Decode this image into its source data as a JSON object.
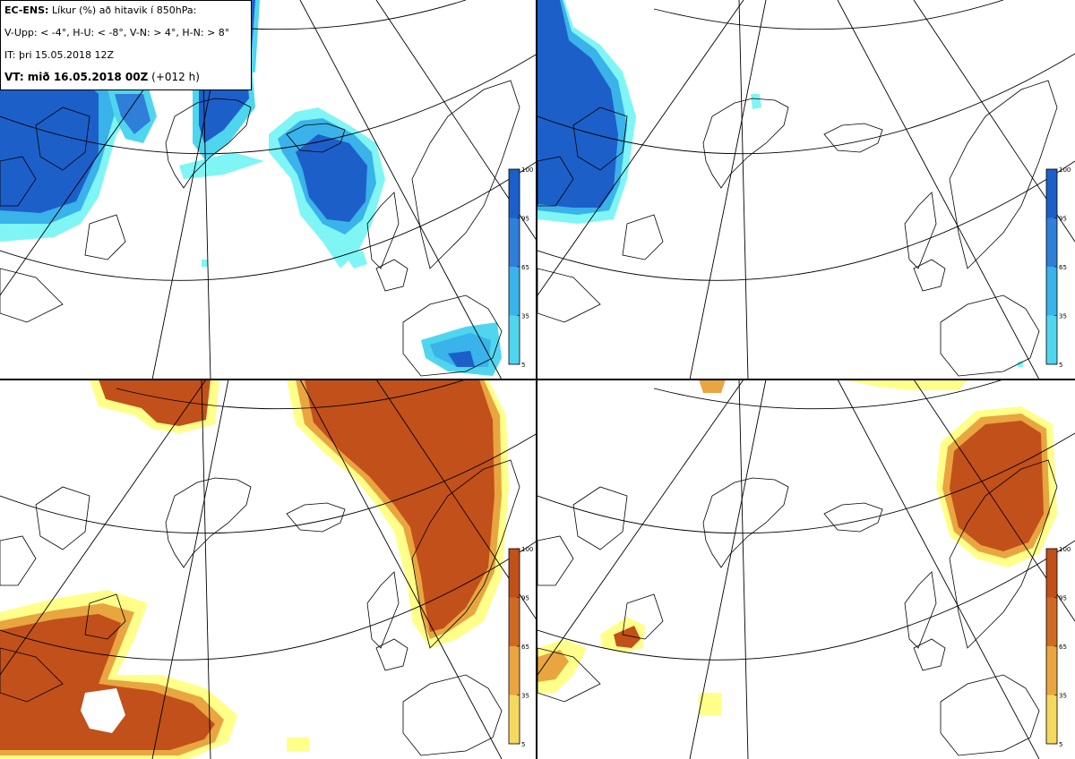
{
  "header": {
    "product": "EC-ENS:",
    "title_rest": "Líkur (%) að hitavik í 850hPa:",
    "thresholds": "V-Upp: < -4°, H-U: < -8°, V-N: > 4°, H-N: > 8°",
    "it_label": "IT: þri 15.05.2018 12Z",
    "vt_label": "VT: mið 16.05.2018 00Z",
    "vt_lead": "(+012 h)"
  },
  "colorbar_ticks": [
    "100",
    "95",
    "65",
    "35",
    "5"
  ],
  "colorbars": {
    "cold": [
      "#7ff5f6",
      "#4fd6ee",
      "#3ab2ea",
      "#2f7ed8",
      "#1d5fc9"
    ],
    "warm": [
      "#ffff8a",
      "#f5d860",
      "#e9a540",
      "#cf6a25",
      "#c2501a"
    ]
  },
  "panels": [
    {
      "name": "V-Upp",
      "type": "cold"
    },
    {
      "name": "H-U",
      "type": "cold"
    },
    {
      "name": "V-N",
      "type": "warm"
    },
    {
      "name": "H-N",
      "type": "warm"
    }
  ]
}
